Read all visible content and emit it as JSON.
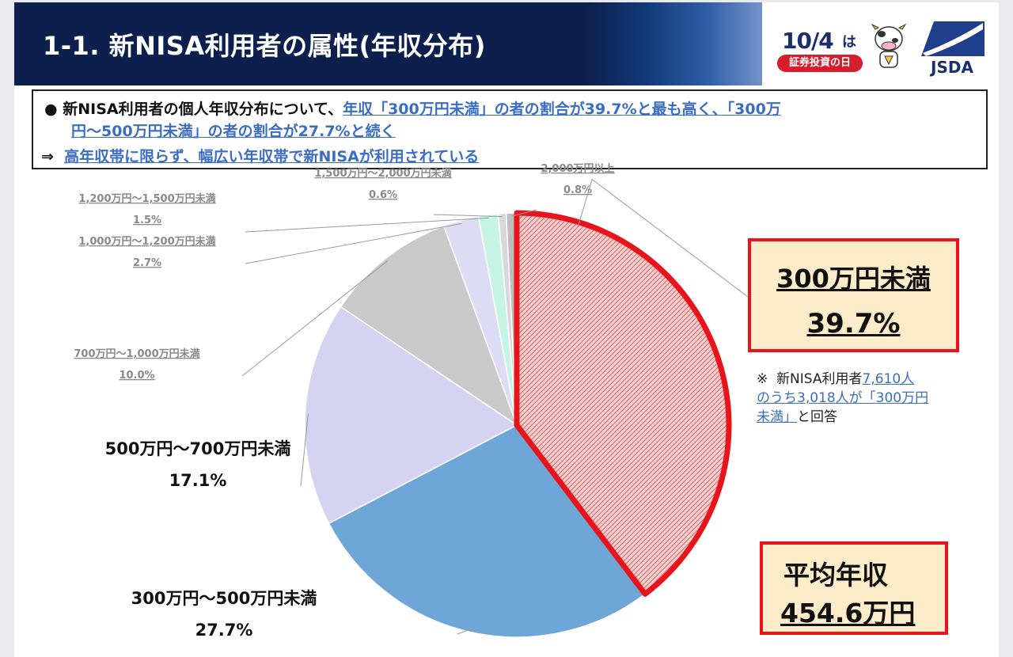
{
  "header": {
    "title": "1-1. 新NISA利用者の属性(年収分布)",
    "event_logo_date": "10/4",
    "event_logo_suffix": "は",
    "event_logo_caption": "証券投資の日",
    "org_logo_text": "JSDA"
  },
  "summary": {
    "bullet": "●",
    "line1_plain": "新NISA利用者の個人年収分布について、",
    "line1_hl": "年収「300万円未満」の者の割合が39.7%と最も高く、「300万",
    "line2_hl": "円～500万円未満」の者の割合が27.7%と続く",
    "arrow": "⇒",
    "line3_hl": "高年収帯に限らず、幅広い年収帯で新NISAが利用されている"
  },
  "callout_main": {
    "category": "300万円未満",
    "percent": "39.7%"
  },
  "note": {
    "mark": "※",
    "text_a": "新NISA利用者",
    "text_b": "7,610人",
    "text_c": "のうち3,018人が「300万円",
    "text_d": "未満」",
    "text_e": "と回答"
  },
  "callout_avg": {
    "label": "平均年収",
    "value": "454.6万円"
  },
  "colors": {
    "highlight_border": "#e8131b",
    "callout_fill": "#fcecc9",
    "header_navy": "#0d1f4c",
    "link_blue": "#3b6ec2"
  },
  "chart_data": {
    "type": "pie",
    "start_angle_deg": 0,
    "direction": "clockwise",
    "slices": [
      {
        "label": "300万円未満",
        "value": 39.7,
        "display": "39.7%",
        "color": "#f6c9c9",
        "pattern": "red-hatch",
        "highlighted": true
      },
      {
        "label": "300万円～500万円未満",
        "value": 27.7,
        "display": "27.7%",
        "color": "#6fa6d8"
      },
      {
        "label": "500万円～700万円未満",
        "value": 17.1,
        "display": "17.1%",
        "color": "#d4d3f1"
      },
      {
        "label": "700万円～1,000万円未満",
        "value": 10.0,
        "display": "10.0%",
        "color": "#c9c9c9"
      },
      {
        "label": "1,000万円～1,200万円未満",
        "value": 2.7,
        "display": "2.7%",
        "color": "#dcdcf5"
      },
      {
        "label": "1,200万円～1,500万円未満",
        "value": 1.5,
        "display": "1.5%",
        "color": "#c6f4e4"
      },
      {
        "label": "1,500万円～2,000万円未満",
        "value": 0.6,
        "display": "0.6%",
        "color": "#d8d8d8"
      },
      {
        "label": "2,000万円以上",
        "value": 0.8,
        "display": "0.8%",
        "color": "#bdbdbd"
      }
    ]
  }
}
